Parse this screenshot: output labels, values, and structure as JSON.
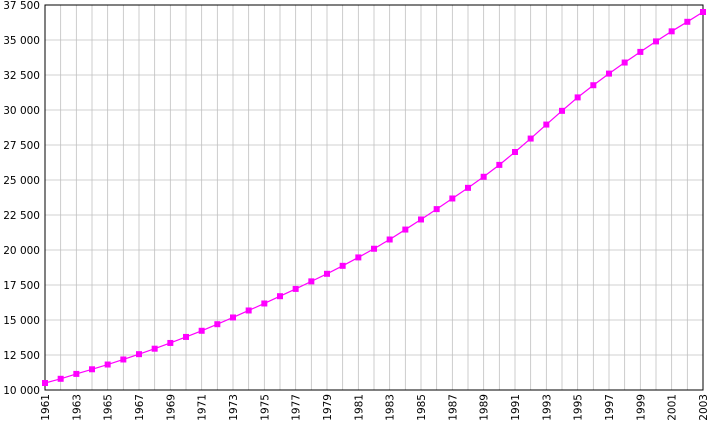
{
  "chart_data": {
    "type": "line",
    "title": "",
    "xlabel": "",
    "ylabel": "",
    "x": [
      1961,
      1962,
      1963,
      1964,
      1965,
      1966,
      1967,
      1968,
      1969,
      1970,
      1971,
      1972,
      1973,
      1974,
      1975,
      1976,
      1977,
      1978,
      1979,
      1980,
      1981,
      1982,
      1983,
      1984,
      1985,
      1986,
      1987,
      1988,
      1989,
      1990,
      1991,
      1992,
      1993,
      1994,
      1995,
      1996,
      1997,
      1998,
      1999,
      2000,
      2001,
      2002,
      2003
    ],
    "series": [
      {
        "values": [
          10500,
          10800,
          11150,
          11480,
          11820,
          12180,
          12560,
          12950,
          13360,
          13790,
          14230,
          14700,
          15180,
          15680,
          16180,
          16700,
          17220,
          17760,
          18300,
          18870,
          19470,
          20090,
          20750,
          21460,
          22180,
          22920,
          23680,
          24440,
          25230,
          26080,
          27000,
          27960,
          28960,
          29940,
          30900,
          31770,
          32600,
          33390,
          34150,
          34900,
          35620,
          36300,
          37000
        ],
        "color": "#ff00ff"
      }
    ],
    "xlim": [
      1961,
      2003
    ],
    "ylim": [
      10000,
      37500
    ],
    "y_ticks": [
      10000,
      12500,
      15000,
      17500,
      20000,
      22500,
      25000,
      27500,
      30000,
      32500,
      35000,
      37500
    ],
    "y_tick_labels": [
      "10 000",
      "12 500",
      "15 000",
      "17 500",
      "20 000",
      "22 500",
      "25 000",
      "27 500",
      "30 000",
      "32 500",
      "35 000",
      "37 500"
    ],
    "x_tick_labels": [
      "1961",
      "1963",
      "1965",
      "1967",
      "1969",
      "1971",
      "1973",
      "1975",
      "1977",
      "1979",
      "1981",
      "1983",
      "1985",
      "1987",
      "1989",
      "1991",
      "1993",
      "1995",
      "1997",
      "1999",
      "2001",
      "2003"
    ],
    "grid": true,
    "colors": {
      "line": "#ff00ff",
      "grid": "#c0c0c0",
      "axis": "#000000"
    }
  }
}
